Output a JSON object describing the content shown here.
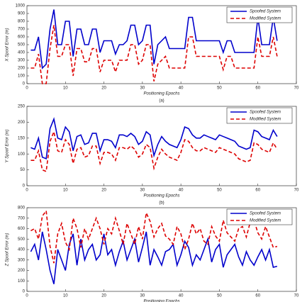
{
  "chart_data": [
    {
      "type": "line",
      "caption": "(a)",
      "xlabel": "Positioning Epochs",
      "ylabel": "X Spoof Error (m)",
      "xlim": [
        0,
        70
      ],
      "ylim": [
        0,
        1000
      ],
      "xticks": [
        0,
        10,
        20,
        30,
        40,
        50,
        60,
        70
      ],
      "yticks": [
        0,
        100,
        200,
        300,
        400,
        500,
        600,
        700,
        800,
        900,
        1000
      ],
      "legend": "upper right",
      "x": [
        1,
        2,
        3,
        4,
        5,
        6,
        7,
        8,
        9,
        10,
        11,
        12,
        13,
        14,
        15,
        16,
        17,
        18,
        19,
        20,
        21,
        22,
        23,
        24,
        25,
        26,
        27,
        28,
        29,
        30,
        31,
        32,
        33,
        34,
        35,
        36,
        37,
        38,
        39,
        40,
        41,
        42,
        43,
        44,
        45,
        46,
        47,
        48,
        49,
        50,
        51,
        52,
        53,
        54,
        55,
        56,
        57,
        58,
        59,
        60,
        61,
        62,
        63,
        64,
        65
      ],
      "series": [
        {
          "name": "Spoofed System",
          "color": "#0000cc",
          "linestyle": "solid",
          "values": [
            430,
            430,
            600,
            200,
            250,
            700,
            950,
            500,
            500,
            800,
            800,
            350,
            700,
            700,
            500,
            500,
            700,
            700,
            400,
            550,
            550,
            550,
            380,
            500,
            500,
            550,
            750,
            750,
            500,
            550,
            750,
            750,
            250,
            500,
            550,
            600,
            450,
            450,
            450,
            450,
            450,
            850,
            850,
            550,
            550,
            550,
            550,
            550,
            550,
            550,
            400,
            550,
            550,
            400,
            400,
            400,
            400,
            400,
            400,
            850,
            500,
            500,
            500,
            850,
            550
          ]
        },
        {
          "name": "Modified System",
          "color": "#dd0000",
          "linestyle": "dashed",
          "values": [
            200,
            200,
            380,
            0,
            0,
            450,
            750,
            350,
            350,
            500,
            500,
            100,
            450,
            450,
            280,
            280,
            450,
            450,
            150,
            300,
            300,
            300,
            150,
            300,
            300,
            300,
            500,
            500,
            250,
            300,
            500,
            500,
            30,
            250,
            300,
            350,
            200,
            200,
            200,
            200,
            200,
            600,
            600,
            350,
            350,
            350,
            350,
            350,
            350,
            350,
            180,
            350,
            350,
            200,
            200,
            200,
            200,
            200,
            200,
            600,
            350,
            350,
            350,
            600,
            350
          ]
        }
      ]
    },
    {
      "type": "line",
      "caption": "(b)",
      "xlabel": "Positioning Epochs",
      "ylabel": "Y Spoof Error (m)",
      "xlim": [
        0,
        70
      ],
      "ylim": [
        0,
        250
      ],
      "xticks": [
        0,
        10,
        20,
        30,
        40,
        50,
        60,
        70
      ],
      "yticks": [
        0,
        50,
        100,
        150,
        200,
        250
      ],
      "legend": "upper right",
      "x": [
        1,
        2,
        3,
        4,
        5,
        6,
        7,
        8,
        9,
        10,
        11,
        12,
        13,
        14,
        15,
        16,
        17,
        18,
        19,
        20,
        21,
        22,
        23,
        24,
        25,
        26,
        27,
        28,
        29,
        30,
        31,
        32,
        33,
        34,
        35,
        36,
        37,
        38,
        39,
        40,
        41,
        42,
        43,
        44,
        45,
        46,
        47,
        48,
        49,
        50,
        51,
        52,
        53,
        54,
        55,
        56,
        57,
        58,
        59,
        60,
        61,
        62,
        63,
        64,
        65
      ],
      "series": [
        {
          "name": "Spoofed System",
          "color": "#0000cc",
          "linestyle": "solid",
          "values": [
            120,
            115,
            150,
            90,
            85,
            180,
            210,
            150,
            145,
            185,
            170,
            110,
            155,
            160,
            130,
            135,
            165,
            165,
            110,
            145,
            145,
            140,
            120,
            160,
            160,
            155,
            165,
            155,
            130,
            140,
            170,
            160,
            95,
            130,
            155,
            140,
            130,
            125,
            120,
            145,
            185,
            180,
            160,
            150,
            150,
            160,
            155,
            150,
            145,
            160,
            155,
            150,
            145,
            140,
            125,
            120,
            115,
            120,
            175,
            170,
            155,
            150,
            145,
            175,
            155
          ]
        },
        {
          "name": "Modified System",
          "color": "#dd0000",
          "linestyle": "dashed",
          "values": [
            80,
            80,
            110,
            50,
            45,
            140,
            170,
            110,
            105,
            145,
            130,
            70,
            115,
            120,
            90,
            95,
            125,
            125,
            70,
            105,
            105,
            100,
            80,
            120,
            120,
            115,
            125,
            115,
            90,
            100,
            130,
            120,
            55,
            90,
            115,
            100,
            90,
            85,
            80,
            105,
            145,
            140,
            120,
            110,
            110,
            120,
            115,
            110,
            105,
            120,
            115,
            110,
            105,
            100,
            85,
            80,
            75,
            80,
            135,
            130,
            115,
            110,
            105,
            135,
            115
          ]
        }
      ]
    },
    {
      "type": "line",
      "xlabel": "Positioning Epochs",
      "ylabel": "Z Spoof Error (m)",
      "xlim": [
        0,
        70
      ],
      "ylim": [
        0,
        800
      ],
      "xticks": [
        0,
        10,
        20,
        30,
        40,
        50,
        60,
        70
      ],
      "yticks": [
        0,
        100,
        200,
        300,
        400,
        500,
        600,
        700,
        800
      ],
      "legend": "upper right",
      "x": [
        1,
        2,
        3,
        4,
        5,
        6,
        7,
        8,
        9,
        10,
        11,
        12,
        13,
        14,
        15,
        16,
        17,
        18,
        19,
        20,
        21,
        22,
        23,
        24,
        25,
        26,
        27,
        28,
        29,
        30,
        31,
        32,
        33,
        34,
        35,
        36,
        37,
        38,
        39,
        40,
        41,
        42,
        43,
        44,
        45,
        46,
        47,
        48,
        49,
        50,
        51,
        52,
        53,
        54,
        55,
        56,
        57,
        58,
        59,
        60,
        61,
        62,
        63,
        64,
        65
      ],
      "series": [
        {
          "name": "Spoofed System",
          "color": "#0000cc",
          "linestyle": "solid",
          "values": [
            380,
            450,
            300,
            570,
            400,
            200,
            70,
            400,
            300,
            200,
            450,
            550,
            250,
            500,
            300,
            400,
            450,
            300,
            350,
            550,
            350,
            400,
            250,
            380,
            480,
            300,
            400,
            500,
            280,
            420,
            570,
            250,
            400,
            330,
            250,
            380,
            400,
            450,
            250,
            350,
            480,
            420,
            250,
            350,
            300,
            400,
            500,
            280,
            400,
            450,
            230,
            350,
            400,
            450,
            330,
            250,
            380,
            300,
            250,
            330,
            400,
            300,
            400,
            230,
            240
          ]
        },
        {
          "name": "Modified System",
          "color": "#dd0000",
          "linestyle": "dashed",
          "values": [
            580,
            600,
            500,
            720,
            770,
            430,
            270,
            550,
            650,
            470,
            400,
            700,
            600,
            420,
            600,
            500,
            600,
            700,
            600,
            450,
            600,
            550,
            700,
            580,
            450,
            650,
            550,
            450,
            620,
            500,
            750,
            670,
            520,
            600,
            650,
            530,
            500,
            450,
            620,
            550,
            400,
            500,
            650,
            550,
            600,
            480,
            450,
            620,
            530,
            480,
            680,
            560,
            520,
            480,
            600,
            620,
            520,
            660,
            680,
            560,
            500,
            620,
            520,
            420,
            430
          ]
        }
      ]
    }
  ]
}
